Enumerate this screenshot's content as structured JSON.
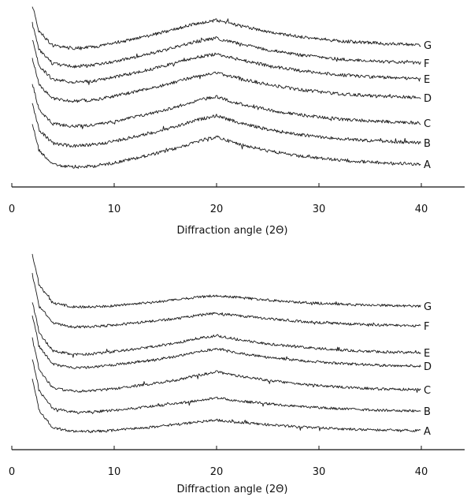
{
  "chart_data": [
    {
      "type": "line",
      "title": "",
      "xlabel": "Diffraction angle (2Θ)",
      "ylabel": "",
      "xlim": [
        0,
        45
      ],
      "x_ticks": [
        "0",
        "10",
        "20",
        "30",
        "40"
      ],
      "grid": false,
      "series": [
        {
          "name": "A",
          "values": [
            [
              2,
              1.0
            ],
            [
              4,
              0.38
            ],
            [
              6,
              0.28
            ],
            [
              8,
              0.32
            ],
            [
              10,
              0.42
            ],
            [
              13,
              0.62
            ],
            [
              16,
              0.85
            ],
            [
              18,
              1.05
            ],
            [
              20,
              1.2
            ],
            [
              22,
              1.0
            ],
            [
              25,
              0.78
            ],
            [
              28,
              0.62
            ],
            [
              32,
              0.5
            ],
            [
              36,
              0.42
            ],
            [
              40,
              0.38
            ]
          ]
        },
        {
          "name": "B",
          "values": [
            [
              2,
              1.0
            ],
            [
              4,
              0.38
            ],
            [
              6,
              0.3
            ],
            [
              8,
              0.34
            ],
            [
              10,
              0.45
            ],
            [
              13,
              0.65
            ],
            [
              16,
              0.88
            ],
            [
              18,
              1.08
            ],
            [
              20,
              1.22
            ],
            [
              22,
              1.02
            ],
            [
              25,
              0.8
            ],
            [
              28,
              0.65
            ],
            [
              32,
              0.52
            ],
            [
              36,
              0.45
            ],
            [
              40,
              0.4
            ]
          ]
        },
        {
          "name": "C",
          "values": [
            [
              2,
              1.0
            ],
            [
              4,
              0.38
            ],
            [
              6,
              0.3
            ],
            [
              8,
              0.34
            ],
            [
              10,
              0.45
            ],
            [
              13,
              0.65
            ],
            [
              16,
              0.88
            ],
            [
              18,
              1.08
            ],
            [
              20,
              1.2
            ],
            [
              22,
              1.0
            ],
            [
              25,
              0.8
            ],
            [
              28,
              0.65
            ],
            [
              32,
              0.52
            ],
            [
              36,
              0.45
            ],
            [
              40,
              0.4
            ]
          ]
        },
        {
          "name": "D",
          "values": [
            [
              2,
              1.0
            ],
            [
              4,
              0.38
            ],
            [
              6,
              0.3
            ],
            [
              8,
              0.34
            ],
            [
              10,
              0.45
            ],
            [
              13,
              0.65
            ],
            [
              16,
              0.88
            ],
            [
              18,
              1.05
            ],
            [
              20,
              1.15
            ],
            [
              22,
              1.0
            ],
            [
              25,
              0.8
            ],
            [
              28,
              0.65
            ],
            [
              32,
              0.52
            ],
            [
              36,
              0.45
            ],
            [
              40,
              0.4
            ]
          ]
        },
        {
          "name": "E",
          "values": [
            [
              2,
              1.0
            ],
            [
              4,
              0.38
            ],
            [
              6,
              0.3
            ],
            [
              8,
              0.34
            ],
            [
              10,
              0.45
            ],
            [
              13,
              0.65
            ],
            [
              16,
              0.88
            ],
            [
              18,
              1.05
            ],
            [
              20,
              1.15
            ],
            [
              22,
              1.0
            ],
            [
              25,
              0.8
            ],
            [
              28,
              0.65
            ],
            [
              32,
              0.52
            ],
            [
              36,
              0.45
            ],
            [
              40,
              0.4
            ]
          ]
        },
        {
          "name": "F",
          "values": [
            [
              2,
              1.0
            ],
            [
              4,
              0.38
            ],
            [
              6,
              0.3
            ],
            [
              8,
              0.34
            ],
            [
              10,
              0.45
            ],
            [
              13,
              0.65
            ],
            [
              16,
              0.88
            ],
            [
              18,
              1.05
            ],
            [
              20,
              1.15
            ],
            [
              22,
              1.0
            ],
            [
              25,
              0.8
            ],
            [
              28,
              0.65
            ],
            [
              32,
              0.52
            ],
            [
              36,
              0.45
            ],
            [
              40,
              0.4
            ]
          ]
        },
        {
          "name": "G",
          "values": [
            [
              2,
              1.0
            ],
            [
              4,
              0.38
            ],
            [
              6,
              0.3
            ],
            [
              8,
              0.34
            ],
            [
              10,
              0.45
            ],
            [
              13,
              0.65
            ],
            [
              16,
              0.88
            ],
            [
              18,
              1.05
            ],
            [
              20,
              1.15
            ],
            [
              22,
              1.0
            ],
            [
              25,
              0.8
            ],
            [
              28,
              0.65
            ],
            [
              32,
              0.52
            ],
            [
              36,
              0.45
            ],
            [
              40,
              0.4
            ]
          ]
        }
      ]
    },
    {
      "type": "line",
      "title": "",
      "xlabel": "Diffraction angle (2Θ)",
      "ylabel": "",
      "xlim": [
        0,
        45
      ],
      "x_ticks": [
        "0",
        "10",
        "20",
        "30",
        "40"
      ],
      "grid": false,
      "series": [
        {
          "name": "A",
          "values": [
            [
              2,
              1.0
            ],
            [
              4,
              0.3
            ],
            [
              6,
              0.2
            ],
            [
              8,
              0.2
            ],
            [
              10,
              0.23
            ],
            [
              13,
              0.3
            ],
            [
              16,
              0.38
            ],
            [
              18,
              0.45
            ],
            [
              20,
              0.5
            ],
            [
              22,
              0.45
            ],
            [
              25,
              0.38
            ],
            [
              28,
              0.32
            ],
            [
              32,
              0.27
            ],
            [
              36,
              0.24
            ],
            [
              40,
              0.22
            ]
          ]
        },
        {
          "name": "B",
          "values": [
            [
              2,
              1.0
            ],
            [
              4,
              0.3
            ],
            [
              6,
              0.2
            ],
            [
              8,
              0.21
            ],
            [
              10,
              0.25
            ],
            [
              13,
              0.33
            ],
            [
              16,
              0.42
            ],
            [
              18,
              0.5
            ],
            [
              20,
              0.58
            ],
            [
              22,
              0.5
            ],
            [
              25,
              0.42
            ],
            [
              28,
              0.35
            ],
            [
              32,
              0.29
            ],
            [
              36,
              0.25
            ],
            [
              40,
              0.23
            ]
          ]
        },
        {
          "name": "C",
          "values": [
            [
              2,
              1.0
            ],
            [
              4,
              0.3
            ],
            [
              6,
              0.2
            ],
            [
              8,
              0.22
            ],
            [
              10,
              0.28
            ],
            [
              13,
              0.38
            ],
            [
              16,
              0.5
            ],
            [
              18,
              0.62
            ],
            [
              20,
              0.72
            ],
            [
              22,
              0.62
            ],
            [
              25,
              0.5
            ],
            [
              28,
              0.4
            ],
            [
              32,
              0.32
            ],
            [
              36,
              0.27
            ],
            [
              40,
              0.25
            ]
          ]
        },
        {
          "name": "D",
          "values": [
            [
              2,
              1.0
            ],
            [
              4,
              0.3
            ],
            [
              6,
              0.2
            ],
            [
              8,
              0.22
            ],
            [
              10,
              0.28
            ],
            [
              13,
              0.38
            ],
            [
              16,
              0.5
            ],
            [
              18,
              0.62
            ],
            [
              20,
              0.7
            ],
            [
              22,
              0.6
            ],
            [
              25,
              0.48
            ],
            [
              28,
              0.4
            ],
            [
              32,
              0.32
            ],
            [
              36,
              0.27
            ],
            [
              40,
              0.25
            ]
          ]
        },
        {
          "name": "E",
          "values": [
            [
              2,
              1.0
            ],
            [
              4,
              0.3
            ],
            [
              6,
              0.2
            ],
            [
              8,
              0.22
            ],
            [
              10,
              0.28
            ],
            [
              13,
              0.38
            ],
            [
              16,
              0.5
            ],
            [
              18,
              0.62
            ],
            [
              20,
              0.7
            ],
            [
              22,
              0.6
            ],
            [
              25,
              0.48
            ],
            [
              28,
              0.4
            ],
            [
              32,
              0.32
            ],
            [
              36,
              0.27
            ],
            [
              40,
              0.25
            ]
          ]
        },
        {
          "name": "F",
          "values": [
            [
              2,
              1.0
            ],
            [
              4,
              0.3
            ],
            [
              6,
              0.2
            ],
            [
              8,
              0.21
            ],
            [
              10,
              0.25
            ],
            [
              13,
              0.33
            ],
            [
              16,
              0.42
            ],
            [
              18,
              0.5
            ],
            [
              20,
              0.56
            ],
            [
              22,
              0.5
            ],
            [
              25,
              0.42
            ],
            [
              28,
              0.35
            ],
            [
              32,
              0.29
            ],
            [
              36,
              0.25
            ],
            [
              40,
              0.23
            ]
          ]
        },
        {
          "name": "G",
          "values": [
            [
              2,
              1.0
            ],
            [
              4,
              0.3
            ],
            [
              6,
              0.2
            ],
            [
              8,
              0.2
            ],
            [
              10,
              0.23
            ],
            [
              13,
              0.3
            ],
            [
              16,
              0.38
            ],
            [
              18,
              0.45
            ],
            [
              20,
              0.5
            ],
            [
              22,
              0.45
            ],
            [
              25,
              0.38
            ],
            [
              28,
              0.32
            ],
            [
              32,
              0.27
            ],
            [
              36,
              0.24
            ],
            [
              40,
              0.22
            ]
          ]
        }
      ]
    }
  ]
}
